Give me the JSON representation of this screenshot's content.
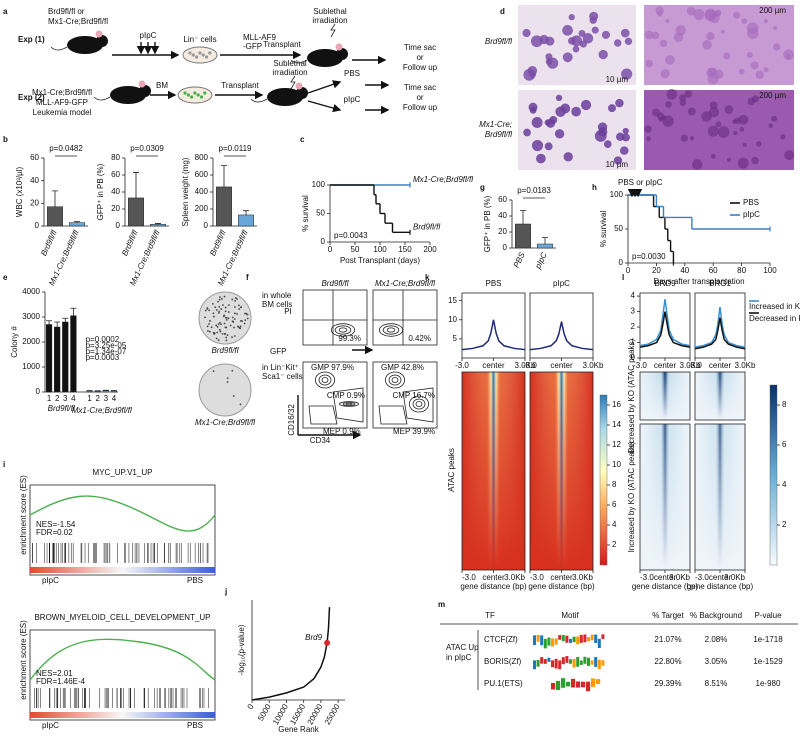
{
  "panel_labels": [
    "a",
    "b",
    "c",
    "d",
    "e",
    "f",
    "g",
    "h",
    "i",
    "j",
    "k",
    "l",
    "m"
  ],
  "a": {
    "exp1": "Exp (1)",
    "exp2": "Exp (2)",
    "genotype1": [
      "Brd9fl/fl or",
      "Mx1-Cre;Brd9fl/fl"
    ],
    "pipc": "pIpC",
    "lin": "Lin⁻ cells",
    "mllaf9": [
      "MLL-AF9",
      "-GFP"
    ],
    "transplant": "Transplant",
    "irradiation": [
      "Sublethal",
      "irradiation"
    ],
    "outcome": [
      "Time sac",
      "or",
      "Follow up"
    ],
    "genotype2": [
      "Mx1-Cre;Brd9fl/fl",
      "MLL-AF9-GFP",
      "Leukemia model"
    ],
    "bm": "BM",
    "pbs": "PBS"
  },
  "d": {
    "row_labels": [
      [
        "Brd9fl/fl"
      ],
      [
        "Mx1-Cre;",
        "Brd9fl/fl"
      ]
    ],
    "scale_small": "10 µm",
    "scale_large": "200 µm"
  },
  "f": {
    "top_labels": [
      "Brd9fl/fl",
      "Mx1-Cre;Brd9fl/fl"
    ],
    "row1": [
      "in whole",
      "BM cells"
    ],
    "row2": [
      "in Lin⁻Kit⁺",
      "Sca1⁻ cells"
    ],
    "pi": "PI",
    "gfp": "GFP",
    "pct1": [
      "99.3%",
      "0.42%"
    ],
    "gates": [
      [
        "GMP 97.9%",
        "CMP 0.9%",
        "MEP 0.9%"
      ],
      [
        "GMP 42.8%",
        "CMP 16.7%",
        "MEP 39.9%"
      ]
    ],
    "xlabel": "CD34",
    "ylabel": "CD16/32"
  },
  "i": {
    "ylabel": "enrichment score (ES)",
    "left": "pIpC",
    "right": "PBS",
    "plots": [
      {
        "title": "MYC_UP.V1_UP",
        "stats": [
          "NES=-1.54",
          "FDR=0.02"
        ]
      },
      {
        "title": "BROWN_MYELOID_CELL_DEVELOPMENT_UP",
        "stats": [
          "NES=2.01",
          "FDR=1.46E-4"
        ]
      }
    ]
  },
  "k": {
    "ylabel": "ATAC peaks",
    "colorbar_lim": [
      0,
      17
    ],
    "colorbar_ticks": [
      2,
      4,
      6,
      8,
      10,
      12,
      14,
      16
    ]
  },
  "l": {
    "ylabels": [
      "Decreased by KO (ATAC peaks)",
      "Increased by KO (ATAC peaks)"
    ],
    "colorbar_lim": [
      0,
      9
    ],
    "colorbar_ticks": [
      2,
      4,
      6,
      8
    ]
  },
  "m": {
    "headers": [
      "TF",
      "Motif",
      "% Target",
      "% Background",
      "P-value"
    ],
    "group": [
      "ATAC Up",
      "in pIpC"
    ],
    "rows": [
      [
        "CTCF(Zf)",
        "21.07%",
        "2.08%",
        "1e-1718"
      ],
      [
        "BORIS(Zf)",
        "22.80%",
        "3.05%",
        "1e-1529"
      ],
      [
        "PU.1(ETS)",
        "29.39%",
        "8.51%",
        "1e-980"
      ]
    ]
  },
  "chart_data": [
    {
      "type": "bar",
      "ylabel": "WBC (x10³/µl)",
      "categories": [
        "Brd9fl/fl",
        "Mx1-Cre;Brd9fl/fl"
      ],
      "values": [
        17,
        3
      ],
      "errors": [
        14,
        1
      ],
      "colors": [
        "#555555",
        "#6aa6d8"
      ],
      "ylim": [
        0,
        60
      ],
      "yticks": [
        0,
        20,
        40,
        60
      ],
      "p_value": "p=0.0482"
    },
    {
      "type": "bar",
      "ylabel": "GFP⁺ in PB (%)",
      "categories": [
        "Brd9fl/fl",
        "Mx1-Cre;Brd9fl/fl"
      ],
      "values": [
        33,
        2
      ],
      "errors": [
        30,
        1
      ],
      "colors": [
        "#555555",
        "#6aa6d8"
      ],
      "ylim": [
        0,
        80
      ],
      "yticks": [
        0,
        20,
        40,
        60,
        80
      ],
      "p_value": "p=0.0309"
    },
    {
      "type": "bar",
      "ylabel": "Spleen weight (mg)",
      "categories": [
        "Brd9fl/fl",
        "Mx1-Cre;Brd9fl/fl"
      ],
      "values": [
        460,
        130
      ],
      "errors": [
        250,
        50
      ],
      "colors": [
        "#555555",
        "#6aa6d8"
      ],
      "ylim": [
        0,
        800
      ],
      "yticks": [
        0,
        200,
        400,
        600,
        800
      ],
      "p_value": "p=0.0119"
    },
    {
      "type": "line",
      "step": true,
      "xlabel": "Post Transplant (days)",
      "ylabel": "% survival",
      "xlim": [
        0,
        200
      ],
      "xticks": [
        0,
        50,
        100,
        150,
        200
      ],
      "ylim": [
        0,
        100
      ],
      "yticks": [
        0,
        50,
        100
      ],
      "legend": "line-end",
      "annotation": "p=0.0043",
      "series": [
        {
          "name": "Mx1-Cre;Brd9fl/fl",
          "color": "#3a7fc4",
          "x": [
            0,
            160
          ],
          "values": [
            100,
            100
          ]
        },
        {
          "name": "Brd9fl/fl",
          "color": "#111111",
          "x": [
            0,
            88,
            92,
            100,
            110,
            125,
            160
          ],
          "values": [
            100,
            83,
            67,
            50,
            33,
            17,
            17
          ]
        }
      ]
    },
    {
      "type": "bar",
      "ylabel": "Colony #",
      "categories": [
        "1",
        "2",
        "3",
        "4",
        "1",
        "2",
        "3",
        "4"
      ],
      "groups": [
        "Brd9fl/fl",
        "Mx1-Cre;Brd9fl/fl"
      ],
      "values": [
        2700,
        2600,
        2800,
        3050,
        40,
        30,
        50,
        40
      ],
      "errors": [
        150,
        200,
        150,
        300,
        20,
        20,
        20,
        20
      ],
      "colors": [
        "#111111",
        "#111111",
        "#111111",
        "#111111",
        "#6aa6d8",
        "#6aa6d8",
        "#6aa6d8",
        "#6aa6d8"
      ],
      "ylim": [
        0,
        4000
      ],
      "yticks": [
        0,
        1000,
        2000,
        3000,
        4000
      ],
      "p_values": [
        "p=0.0002",
        "p=3.25e-05",
        "p=1.34e-07",
        "p=0.0003"
      ],
      "plate_labels": [
        "Brd9fl/fl",
        "Mx1-Cre;Brd9fl/fl"
      ]
    },
    {
      "type": "bar",
      "ylabel": "GFP⁺ in PB (%)",
      "categories": [
        "PBS",
        "pIpC"
      ],
      "values": [
        30,
        5
      ],
      "errors": [
        17,
        8
      ],
      "colors": [
        "#555555",
        "#6aa6d8"
      ],
      "ylim": [
        0,
        60
      ],
      "yticks": [
        0,
        20,
        40,
        60
      ],
      "p_value": "p=0.0183"
    },
    {
      "type": "line",
      "step": true,
      "xlabel": "Days after transplantation",
      "ylabel": "% survival",
      "xlim": [
        0,
        100
      ],
      "xticks": [
        0,
        20,
        40,
        60,
        80,
        100
      ],
      "ylim": [
        0,
        100
      ],
      "yticks": [
        0,
        50,
        100
      ],
      "legend": "upper right",
      "annotations": [
        "PBS or pIpC",
        "p=0.0030"
      ],
      "series": [
        {
          "name": "PBS",
          "color": "#111111",
          "x": [
            0,
            18,
            22,
            26,
            28,
            30,
            32
          ],
          "values": [
            100,
            83,
            67,
            50,
            33,
            17,
            0
          ]
        },
        {
          "name": "pIpC",
          "color": "#3a7fc4",
          "x": [
            0,
            20,
            25,
            45,
            100
          ],
          "values": [
            100,
            83,
            67,
            50,
            50
          ]
        }
      ]
    },
    {
      "type": "line",
      "ylabel": "-log₁₀(p-value)",
      "xlabel": "Gene Rank",
      "xlim": [
        0,
        27000
      ],
      "xticks": [
        0,
        5000,
        10000,
        15000,
        20000,
        25000
      ],
      "ylim": [
        0,
        7
      ],
      "x": [
        0,
        5000,
        10000,
        15000,
        18000,
        20000,
        21000,
        21800,
        22200,
        22500
      ],
      "values": [
        0,
        0.2,
        0.5,
        0.9,
        1.5,
        2.3,
        3.0,
        4.0,
        5.0,
        6.5
      ],
      "color": "#111111",
      "highlight": {
        "label": "Brd9",
        "x": 21800,
        "value": 4.0
      }
    },
    {
      "type": "profile",
      "title": "PBS",
      "xlabel": "gene distance (bp)",
      "xlim": [
        -3,
        3
      ],
      "xticks": [
        {
          "value": -3,
          "label": "-3.0"
        },
        {
          "value": 0,
          "label": "center"
        },
        {
          "value": 3,
          "label": "3.0Kb"
        }
      ],
      "ylim": [
        0,
        17
      ],
      "yticks": [
        5,
        10,
        15
      ],
      "x": [
        -3,
        -2,
        -1,
        -0.5,
        -0.25,
        0,
        0.25,
        0.5,
        1,
        2,
        3
      ],
      "series": [
        {
          "color": "#1f2a7a",
          "values": [
            2.2,
            2.5,
            3.2,
            4.5,
            6.5,
            10,
            6.5,
            4.5,
            3.2,
            2.5,
            2.2
          ]
        }
      ]
    },
    {
      "type": "profile",
      "title": "pIpC",
      "xlabel": "gene distance (bp)",
      "xlim": [
        -3,
        3
      ],
      "xticks": [
        {
          "value": -3,
          "label": "-3.0"
        },
        {
          "value": 0,
          "label": "center"
        },
        {
          "value": 3,
          "label": "3.0Kb"
        }
      ],
      "ylim": [
        0,
        17
      ],
      "x": [
        -3,
        -2,
        -1,
        -0.5,
        -0.25,
        0,
        0.25,
        0.5,
        1,
        2,
        3
      ],
      "series": [
        {
          "color": "#1f2a7a",
          "values": [
            2.2,
            2.5,
            3.2,
            4.5,
            6.3,
            9.5,
            6.3,
            4.5,
            3.2,
            2.5,
            2.2
          ]
        }
      ]
    },
    {
      "type": "profile",
      "title": "BRD9",
      "xlabel": "gene distance (bp)",
      "xlim": [
        -3,
        3
      ],
      "xticks": [
        {
          "value": -3,
          "label": "-3.0"
        },
        {
          "value": 0,
          "label": "center"
        },
        {
          "value": 3,
          "label": "3.0Kb"
        }
      ],
      "ylim": [
        0,
        4.2
      ],
      "yticks": [
        0,
        1,
        2,
        3,
        4
      ],
      "x": [
        -3,
        -2,
        -1,
        -0.5,
        -0.25,
        0,
        0.25,
        0.5,
        1,
        2,
        3
      ],
      "series": [
        {
          "color": "#3a8fd0",
          "values": [
            0.8,
            0.9,
            1.2,
            1.8,
            2.8,
            3.8,
            2.8,
            1.8,
            1.2,
            0.9,
            0.8
          ]
        },
        {
          "color": "#111111",
          "values": [
            0.7,
            0.8,
            1.0,
            1.5,
            2.2,
            3.0,
            2.2,
            1.5,
            1.0,
            0.8,
            0.7
          ]
        }
      ]
    },
    {
      "type": "profile",
      "title": "BRG1",
      "xlabel": "gene distance (bp)",
      "xlim": [
        -3,
        3
      ],
      "legend": "right",
      "xticks": [
        {
          "value": -3,
          "label": "-3.0"
        },
        {
          "value": 0,
          "label": "center"
        },
        {
          "value": 3,
          "label": "3.0Kb"
        }
      ],
      "ylim": [
        0,
        4.2
      ],
      "x": [
        -3,
        -2,
        -1,
        -0.5,
        -0.25,
        0,
        0.25,
        0.5,
        1,
        2,
        3
      ],
      "series": [
        {
          "name": "Increased in KO",
          "color": "#3a8fd0",
          "values": [
            0.7,
            0.8,
            1.0,
            1.5,
            2.2,
            3.3,
            2.2,
            1.5,
            1.0,
            0.8,
            0.7
          ]
        },
        {
          "name": "Decreased in KO",
          "color": "#111111",
          "values": [
            0.6,
            0.7,
            0.9,
            1.2,
            1.8,
            2.6,
            1.8,
            1.2,
            0.9,
            0.7,
            0.6
          ]
        }
      ]
    }
  ]
}
